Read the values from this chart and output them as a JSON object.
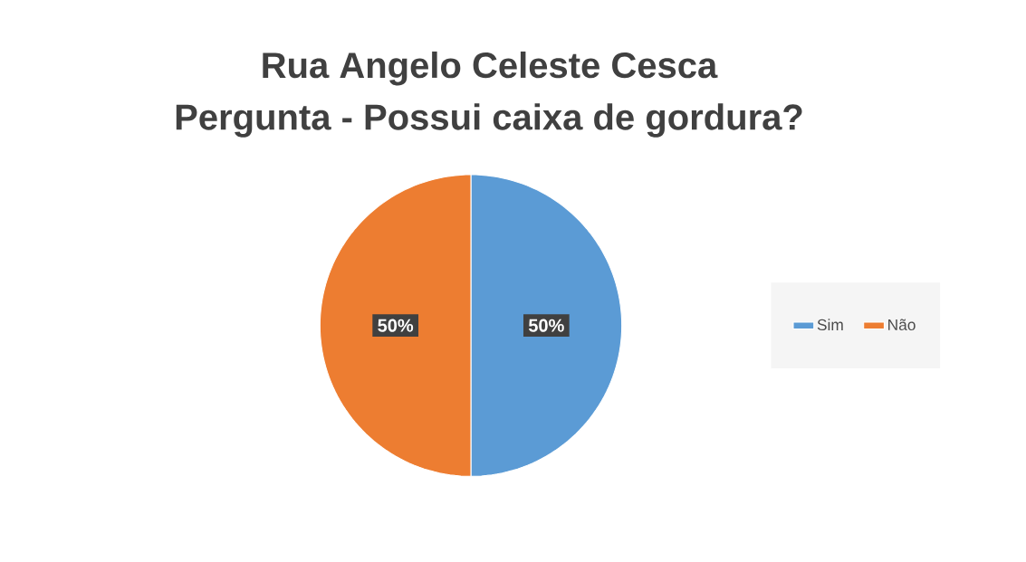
{
  "chart_data": {
    "type": "pie",
    "title": "Rua Angelo Celeste Cesca",
    "subtitle": "Pergunta - Possui caixa de gordura?",
    "categories": [
      "Sim",
      "Não"
    ],
    "values": [
      50,
      50
    ],
    "colors": [
      "#5b9bd5",
      "#ed7d31"
    ],
    "value_labels": [
      "50%",
      "50%"
    ],
    "legend": "right"
  }
}
